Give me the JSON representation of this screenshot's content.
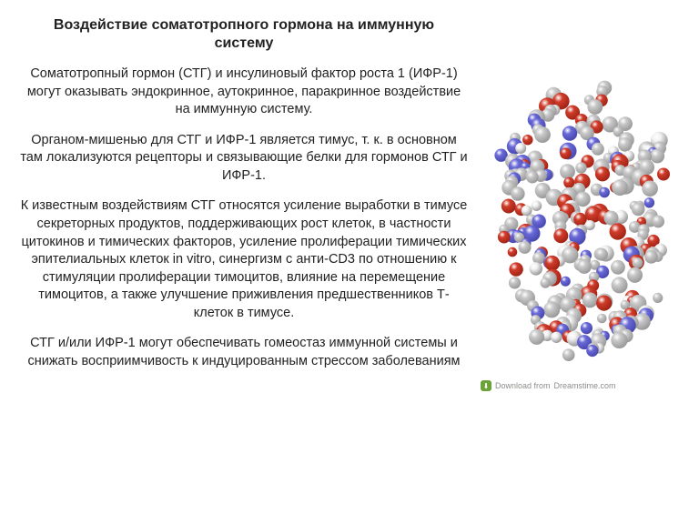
{
  "title": "Воздействие соматотропного гормона на иммунную систему",
  "paragraphs": [
    "Соматотропный гормон (СТГ) и инсулиновый фактор роста 1 (ИФР-1) могут оказывать эндокринное, аутокринное, паракринное воздействие на иммунную систему.",
    "Органом-мишенью для СТГ и ИФР-1 является тимус, т. к. в основном там локализуются рецепторы и связывающие белки для гормонов СТГ и ИФР-1.",
    "К известным воздействиям СТГ относятся усиление выработки в тимусе секреторных продуктов, поддерживающих рост клеток, в частности цитокинов и тимических факторов, усиление пролиферации тимических эпителиальных клеток in vitro, синергизм с анти-CD3 по отношению к стимуляции пролиферации тимоцитов, влияние на перемещение тимоцитов, а также улучшение приживления предшественников Т-клеток в тимусе.",
    "СТГ и/или ИФР-1 могут обеспечивать гомеостаз иммунной системы и снижать восприимчивость к индуцированным стрессом заболеваниям"
  ],
  "molecule": {
    "type": "molecule-space-fill",
    "palette": {
      "carbon": "#c8c8c8",
      "carbon_dark": "#9a9a9a",
      "oxygen": "#d13c2a",
      "oxygen_dark": "#a12416",
      "nitrogen": "#6a6ad8",
      "nitrogen_dark": "#4848b0",
      "hydrogen": "#f2f2f2",
      "background": "#ffffff"
    },
    "atom_radius": 7,
    "atom_count_approx": 260,
    "seed": 20241
  },
  "image_caption": {
    "label": "Download from",
    "source": "Dreamstime.com"
  }
}
